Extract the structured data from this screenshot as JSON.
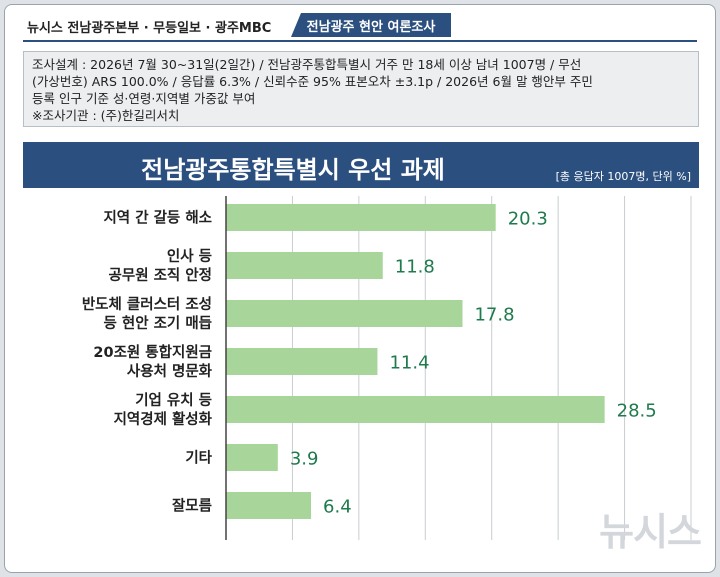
{
  "header": {
    "publishers": "뉴시스  전남광주본부 · 무등일보 · 광주MBC",
    "badge": "전남광주  현안  여론조사"
  },
  "survey": {
    "lines": [
      "조사설계 : 2026년 7월 30~31일(2일간) / 전남광주통합특별시 거주 만 18세 이상 남녀 1007명 / 무선",
      "(가상번호) ARS 100.0% / 응답률 6.3% / 신뢰수준 95% 표본오차 ±3.1p / 2026년 6월 말 행안부 주민",
      "등록 인구 기준 성·연령·지역별 가중값 부여",
      "※조사기관 : (주)한길리서치"
    ]
  },
  "watermark": "뉴시스",
  "colors": {
    "bar": "#a8d69a",
    "label": "#1f7a4d",
    "title_bg": "#2b4f7e",
    "grid": "#c9cdd2"
  },
  "chart_data": {
    "type": "bar",
    "orientation": "horizontal",
    "title": "전남광주통합특별시 우선 과제",
    "unit_note": "[총 응답자 1007명, 단위 %]",
    "categories": [
      [
        "지역 간 갈등 해소"
      ],
      [
        "인사 등",
        "공무원 조직 안정"
      ],
      [
        "반도체 클러스터 조성",
        "등 현안 조기 매듭"
      ],
      [
        "20조원 통합지원금",
        "사용처 명문화"
      ],
      [
        "기업 유치 등",
        "지역경제 활성화"
      ],
      [
        "기타"
      ],
      [
        "잘모름"
      ]
    ],
    "values": [
      20.3,
      11.8,
      17.8,
      11.4,
      28.5,
      3.9,
      6.4
    ],
    "xlim": [
      0,
      35
    ],
    "grid": true
  }
}
